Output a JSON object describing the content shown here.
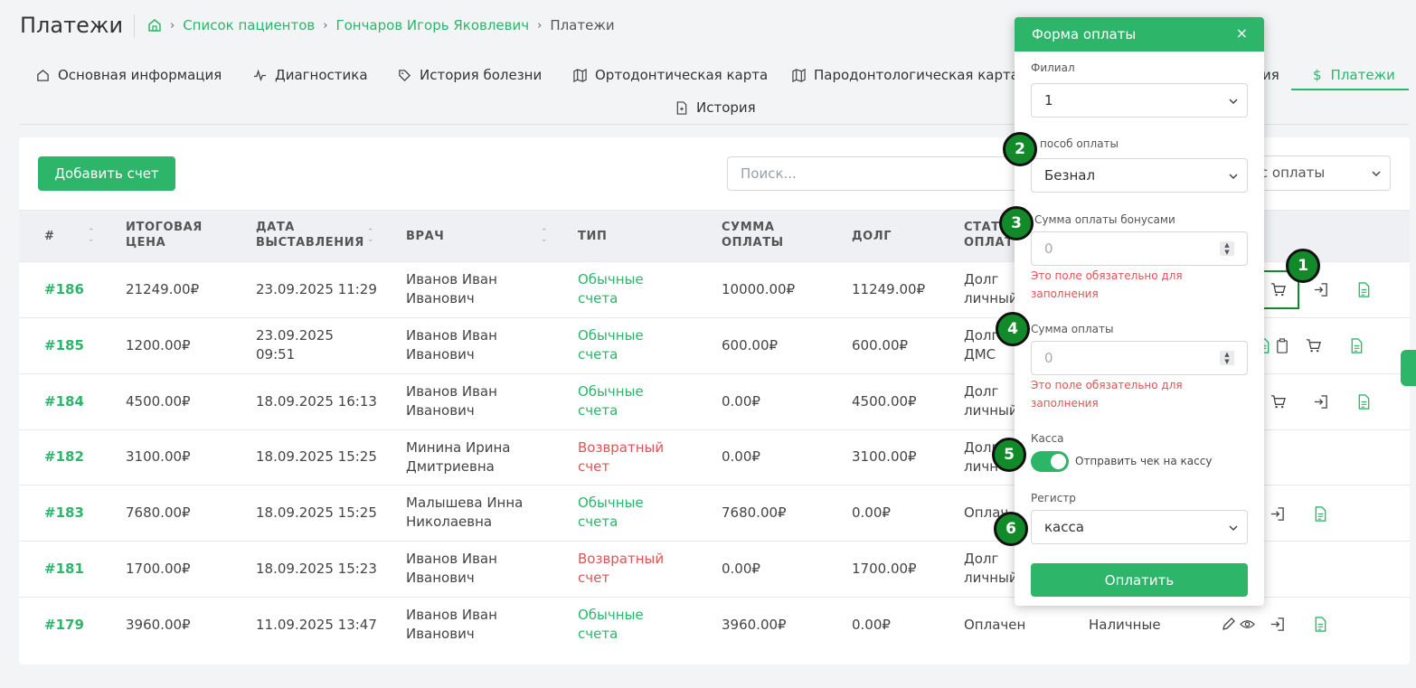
{
  "page": {
    "title": "Платежи",
    "breadcrumbs": [
      "Список пациентов",
      "Гончаров Игорь Яковлевич",
      "Платежи"
    ]
  },
  "tabs": [
    {
      "label": "Основная информация",
      "icon": "home-icon"
    },
    {
      "label": "Диагностика",
      "icon": "pulse-icon"
    },
    {
      "label": "История болезни",
      "icon": "tag-icon"
    },
    {
      "label": "Ортодонтическая карта",
      "icon": "map-icon"
    },
    {
      "label": "Пародонтологическая карта",
      "icon": "map-icon"
    },
    {
      "label": "ия",
      "icon": ""
    },
    {
      "label": "Платежи",
      "icon": "dollar-icon",
      "active": true
    },
    {
      "label": "История",
      "icon": "file-icon"
    }
  ],
  "toolbar": {
    "add_label": "Добавить счет",
    "search_placeholder": "Поиск...",
    "status_filter": "ус оплаты"
  },
  "table": {
    "headers": {
      "num": "#",
      "total_1": "ИТОГОВАЯ",
      "total_2": "ЦЕНА",
      "date_1": "ДАТА",
      "date_2": "ВЫСТАВЛЕНИЯ",
      "doctor": "ВРАЧ",
      "type": "ТИП",
      "paid_1": "СУММА",
      "paid_2": "ОПЛАТЫ",
      "debt": "ДОЛГ",
      "status_1": "СТАТУ",
      "status_2": "ОПЛАТ"
    },
    "rows": [
      {
        "id": "#186",
        "total": "21249.00₽",
        "date_1": "23.09.2025 11:29",
        "date_2": "",
        "doc_1": "Иванов Иван",
        "doc_2": "Иванович",
        "type_1": "Обычные",
        "type_2": "счета",
        "type_color": "green",
        "paid": "10000.00₽",
        "debt": "11249.00₽",
        "st_1": "Долг",
        "st_2": "личный",
        "method": ""
      },
      {
        "id": "#185",
        "total": "1200.00₽",
        "date_1": "23.09.2025",
        "date_2": "09:51",
        "doc_1": "Иванов Иван",
        "doc_2": "Иванович",
        "type_1": "Обычные",
        "type_2": "счета",
        "type_color": "green",
        "paid": "600.00₽",
        "debt": "600.00₽",
        "st_1": "Долг",
        "st_2": "ДМС",
        "method": ""
      },
      {
        "id": "#184",
        "total": "4500.00₽",
        "date_1": "18.09.2025 16:13",
        "date_2": "",
        "doc_1": "Иванов Иван",
        "doc_2": "Иванович",
        "type_1": "Обычные",
        "type_2": "счета",
        "type_color": "green",
        "paid": "0.00₽",
        "debt": "4500.00₽",
        "st_1": "Долг",
        "st_2": "личный",
        "method": ""
      },
      {
        "id": "#182",
        "total": "3100.00₽",
        "date_1": "18.09.2025 15:25",
        "date_2": "",
        "doc_1": "Минина Ирина",
        "doc_2": "Дмитриевна",
        "type_1": "Возвратный",
        "type_2": "счет",
        "type_color": "red",
        "paid": "0.00₽",
        "debt": "3100.00₽",
        "st_1": "Долг",
        "st_2": "личн",
        "method": ""
      },
      {
        "id": "#183",
        "total": "7680.00₽",
        "date_1": "18.09.2025 15:25",
        "date_2": "",
        "doc_1": "Малышева Инна",
        "doc_2": "Николаевна",
        "type_1": "Обычные",
        "type_2": "счета",
        "type_color": "green",
        "paid": "7680.00₽",
        "debt": "0.00₽",
        "st_1": "Оплач",
        "st_2": "",
        "method": ""
      },
      {
        "id": "#181",
        "total": "1700.00₽",
        "date_1": "18.09.2025 15:23",
        "date_2": "",
        "doc_1": "Иванов Иван",
        "doc_2": "Иванович",
        "type_1": "Возвратный",
        "type_2": "счет",
        "type_color": "red",
        "paid": "0.00₽",
        "debt": "1700.00₽",
        "st_1": "Долг",
        "st_2": "личный",
        "method": ""
      },
      {
        "id": "#179",
        "total": "3960.00₽",
        "date_1": "11.09.2025 13:47",
        "date_2": "",
        "doc_1": "Иванов Иван",
        "doc_2": "Иванович",
        "type_1": "Обычные",
        "type_2": "счета",
        "type_color": "green",
        "paid": "3960.00₽",
        "debt": "0.00₽",
        "st_1": "Оплачен",
        "st_2": "",
        "method": "Наличные"
      }
    ]
  },
  "modal": {
    "title": "Форма оплаты",
    "close": "×",
    "branch_label": "Филиал",
    "branch_value": "1",
    "method_label": "пособ оплаты",
    "method_value": "Безнал",
    "bonus_label": "Сумма оплаты бонусами",
    "bonus_placeholder": "0",
    "error_1": "Это поле обязательно для",
    "error_2": "заполнения",
    "amount_label": "Сумма оплаты",
    "amount_placeholder": "0",
    "cash_label": "Касса",
    "cash_toggle_label": "Отправить чек на кассу",
    "cash_toggle_on": true,
    "register_label": "Регистр",
    "register_value": "касса",
    "pay_label": "Оплатить"
  },
  "badges": [
    "1",
    "2",
    "3",
    "4",
    "5",
    "6"
  ],
  "colors": {
    "accent": "#2db56a",
    "error": "#e05454",
    "badge": "#128a2a"
  }
}
